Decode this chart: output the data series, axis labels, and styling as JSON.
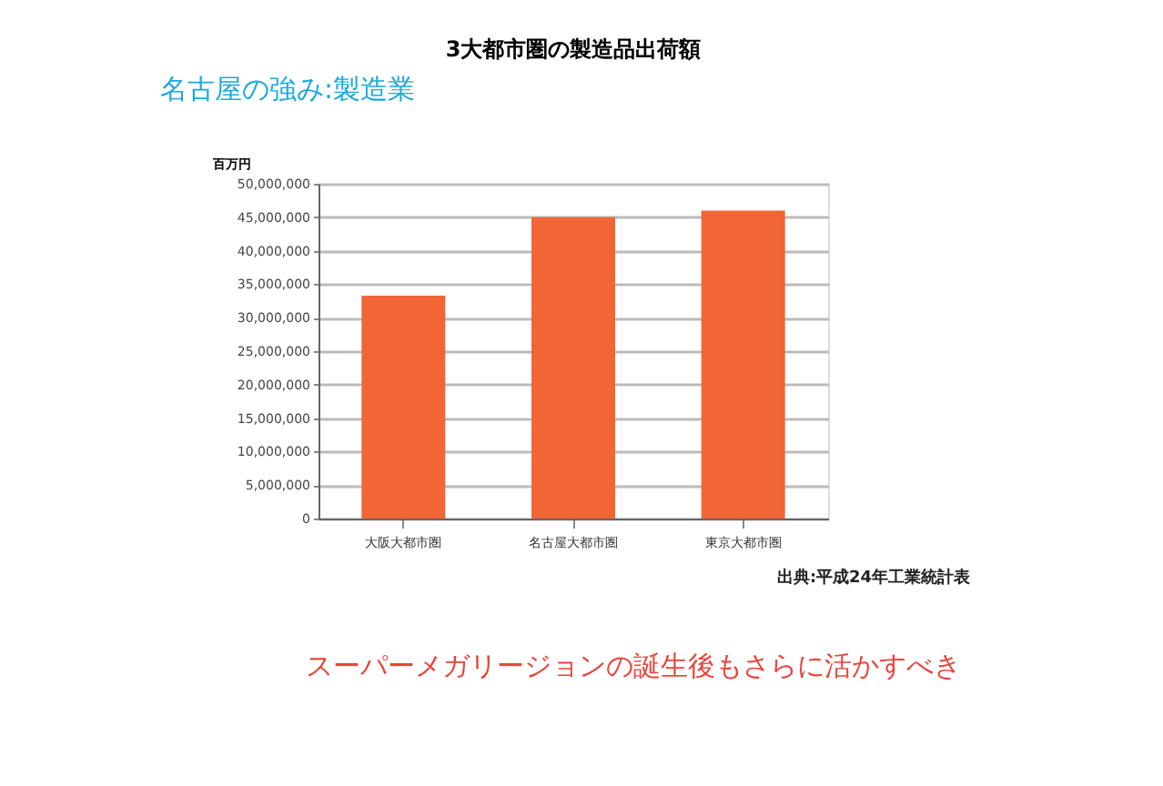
{
  "chart_data": {
    "type": "bar",
    "title": "3大都市圏の製造品出荷額",
    "ylabel": "百万円",
    "categories": [
      "大阪大都市圏",
      "名古屋大都市圏",
      "東京大都市圏"
    ],
    "series": [
      {
        "color": "#f26535",
        "values": [
          33300000,
          45000000,
          46000000
        ]
      }
    ],
    "ylim": [
      0,
      50000000
    ],
    "yticks": [
      {
        "value": 0,
        "label": "0"
      },
      {
        "value": 5000000,
        "label": "5,000,000"
      },
      {
        "value": 10000000,
        "label": "10,000,000"
      },
      {
        "value": 15000000,
        "label": "15,000,000"
      },
      {
        "value": 20000000,
        "label": "20,000,000"
      },
      {
        "value": 25000000,
        "label": "25,000,000"
      },
      {
        "value": 30000000,
        "label": "30,000,000"
      },
      {
        "value": 35000000,
        "label": "35,000,000"
      },
      {
        "value": 40000000,
        "label": "40,000,000"
      },
      {
        "value": 45000000,
        "label": "45,000,000"
      },
      {
        "value": 50000000,
        "label": "50,000,000"
      }
    ],
    "grid": "y",
    "legend": false,
    "annotations": [
      "名古屋の強み:製造業",
      "出典:平成24年工業統計表",
      "スーパーメガリージョンの誕生後もさらに活かすべき"
    ]
  }
}
